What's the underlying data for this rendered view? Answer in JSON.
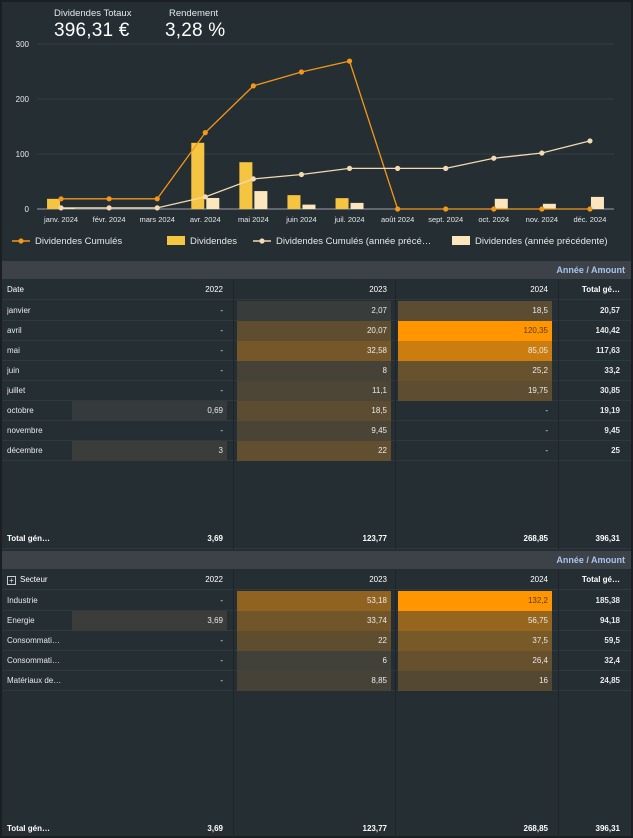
{
  "kpis": {
    "total_label": "Dividendes Totaux",
    "total_value": "396,31 €",
    "yield_label": "Rendement",
    "yield_value": "3,28 %"
  },
  "colors": {
    "cumulative_line": "#f2981a",
    "dividend_bar": "#f5c542",
    "prev_cumulative_line": "#f1dab4",
    "prev_dividend_bar": "#fbe6bd",
    "heat_max": "#ff9500",
    "header_accent": "#a8c4ee"
  },
  "chart_data": {
    "type": "bar",
    "categories": [
      "janv. 2024",
      "févr. 2024",
      "mars 2024",
      "avr. 2024",
      "mai 2024",
      "juin 2024",
      "juil. 2024",
      "août 2024",
      "sept. 2024",
      "oct. 2024",
      "nov. 2024",
      "déc. 2024"
    ],
    "y_ticks": [
      "0",
      "100",
      "200",
      "300"
    ],
    "ylim": [
      0,
      300
    ],
    "series": [
      {
        "name": "Dividendes Cumulés",
        "kind": "line",
        "values": [
          18.5,
          18.5,
          18.5,
          138.85,
          223.9,
          249.1,
          268.85,
          0,
          0,
          0,
          0,
          0
        ]
      },
      {
        "name": "Dividendes",
        "kind": "bar",
        "values": [
          18.5,
          0,
          0,
          120.35,
          85.05,
          25.2,
          19.75,
          0,
          0,
          0,
          0,
          0
        ]
      },
      {
        "name": "Dividendes Cumulés (année précé…",
        "kind": "line",
        "values": [
          2.07,
          2.07,
          2.07,
          22.14,
          54.72,
          62.72,
          73.82,
          73.82,
          73.82,
          92.32,
          101.77,
          123.77
        ]
      },
      {
        "name": "Dividendes (année précédente)",
        "kind": "bar",
        "values": [
          2.07,
          0,
          0,
          20.07,
          32.58,
          8,
          11.1,
          0,
          0,
          18.5,
          9.45,
          22
        ]
      }
    ],
    "legend_position": "bottom",
    "grid": true
  },
  "table1": {
    "header_title": "Année / Amount",
    "columns": [
      "Date",
      "2022",
      "2023",
      "2024",
      "Total gé…"
    ],
    "rows": [
      {
        "label": "janvier",
        "v2022": "-",
        "v2023": "2,07",
        "v2024": "18,5",
        "total": "20,57"
      },
      {
        "label": "avril",
        "v2022": "-",
        "v2023": "20,07",
        "v2024": "120,35",
        "total": "140,42"
      },
      {
        "label": "mai",
        "v2022": "-",
        "v2023": "32,58",
        "v2024": "85,05",
        "total": "117,63"
      },
      {
        "label": "juin",
        "v2022": "-",
        "v2023": "8",
        "v2024": "25,2",
        "total": "33,2"
      },
      {
        "label": "juillet",
        "v2022": "-",
        "v2023": "11,1",
        "v2024": "19,75",
        "total": "30,85"
      },
      {
        "label": "octobre",
        "v2022": "0,69",
        "v2023": "18,5",
        "v2024": "-",
        "total": "19,19"
      },
      {
        "label": "novembre",
        "v2022": "-",
        "v2023": "9,45",
        "v2024": "-",
        "total": "9,45"
      },
      {
        "label": "décembre",
        "v2022": "3",
        "v2023": "22",
        "v2024": "-",
        "total": "25"
      }
    ],
    "total": {
      "label": "Total gén…",
      "v2022": "3,69",
      "v2023": "123,77",
      "v2024": "268,85",
      "total": "396,31"
    }
  },
  "table2": {
    "header_title": "Année / Amount",
    "columns": [
      "Secteur",
      "2022",
      "2023",
      "2024",
      "Total gé…"
    ],
    "rows": [
      {
        "label": "Industrie",
        "v2022": "-",
        "v2023": "53,18",
        "v2024": "132,2",
        "total": "185,38"
      },
      {
        "label": "Energie",
        "v2022": "3,69",
        "v2023": "33,74",
        "v2024": "56,75",
        "total": "94,18"
      },
      {
        "label": "Consommati…",
        "v2022": "-",
        "v2023": "22",
        "v2024": "37,5",
        "total": "59,5"
      },
      {
        "label": "Consommati…",
        "v2022": "-",
        "v2023": "6",
        "v2024": "26,4",
        "total": "32,4"
      },
      {
        "label": "Matériaux de…",
        "v2022": "-",
        "v2023": "8,85",
        "v2024": "16",
        "total": "24,85"
      }
    ],
    "total": {
      "label": "Total gén…",
      "v2022": "3,69",
      "v2023": "123,77",
      "v2024": "268,85",
      "total": "396,31"
    }
  }
}
